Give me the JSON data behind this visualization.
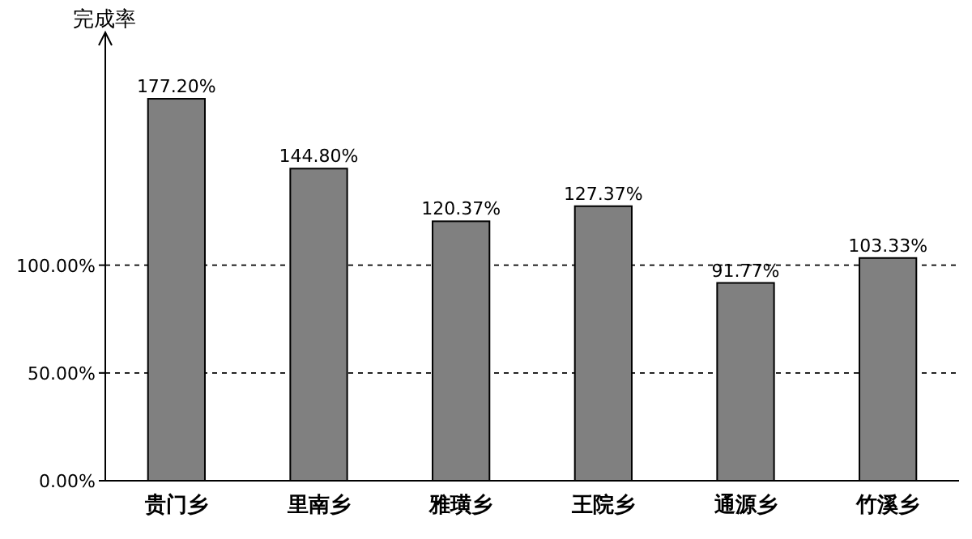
{
  "chart_data": {
    "type": "bar",
    "ylabel": "完成率",
    "categories": [
      "贵门乡",
      "里南乡",
      "雅璜乡",
      "王院乡",
      "通源乡",
      "竹溪乡"
    ],
    "values": [
      177.2,
      144.8,
      120.37,
      127.37,
      91.77,
      103.33
    ],
    "value_labels": [
      "177.20%",
      "144.80%",
      "120.37%",
      "127.37%",
      "91.77%",
      "103.33%"
    ],
    "color": "#808080",
    "ylim": [
      0,
      208
    ],
    "yticks": [
      {
        "value": 0,
        "label": "0.00%"
      },
      {
        "value": 50,
        "label": "50.00%"
      },
      {
        "value": 100,
        "label": "100.00%"
      }
    ],
    "grid": "y"
  }
}
